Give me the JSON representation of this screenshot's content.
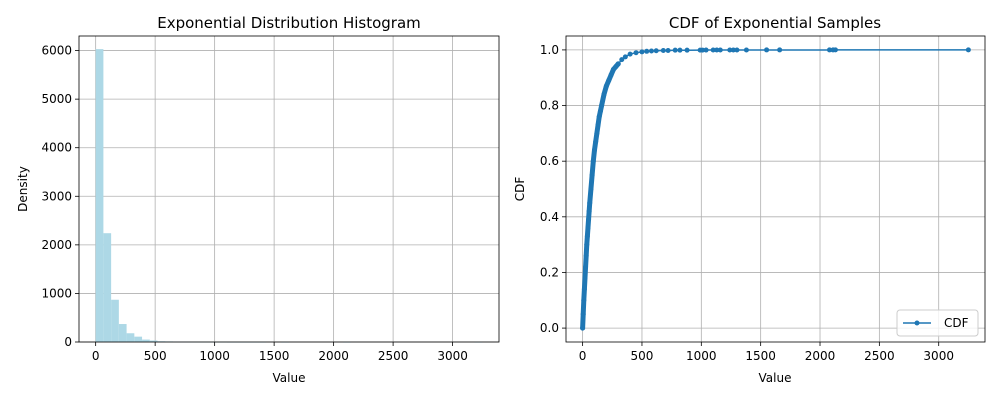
{
  "chart_data": [
    {
      "type": "bar",
      "title": "Exponential Distribution Histogram",
      "xlabel": "Value",
      "ylabel": "Density",
      "xlim": [
        -140,
        3390
      ],
      "ylim": [
        0,
        6300
      ],
      "xticks": [
        0,
        500,
        1000,
        1500,
        2000,
        2500,
        3000
      ],
      "yticks": [
        0,
        1000,
        2000,
        3000,
        4000,
        5000,
        6000
      ],
      "grid": true,
      "bar_color": "#add8e6",
      "bin_width": 65,
      "bins_start": [
        0,
        65,
        130,
        195,
        260,
        325,
        390,
        455,
        520,
        585,
        650,
        715,
        780,
        845,
        910,
        975,
        1040,
        1105,
        1170,
        1235,
        1300,
        1365,
        1430,
        1495,
        1560,
        1625,
        1690,
        1755,
        1820,
        1885,
        1950,
        2015,
        2080,
        2145,
        2210,
        2275,
        2340,
        2405,
        2470,
        2535,
        2600,
        2665,
        2730,
        2795,
        2860,
        2925,
        2990,
        3055,
        3120,
        3185
      ],
      "values": [
        6030,
        2240,
        870,
        370,
        180,
        110,
        50,
        30,
        15,
        12,
        8,
        6,
        4,
        3,
        2,
        2,
        2,
        1,
        1,
        1,
        1,
        1,
        0,
        0,
        1,
        0,
        0,
        0,
        0,
        0,
        0,
        0,
        1,
        0,
        0,
        0,
        0,
        0,
        0,
        0,
        0,
        0,
        0,
        0,
        0,
        0,
        0,
        0,
        0,
        1
      ]
    },
    {
      "type": "line",
      "title": "CDF of Exponential Samples",
      "xlabel": "Value",
      "ylabel": "CDF",
      "xlim": [
        -140,
        3390
      ],
      "ylim": [
        -0.05,
        1.05
      ],
      "xticks": [
        0,
        500,
        1000,
        1500,
        2000,
        2500,
        3000
      ],
      "yticks": [
        0.0,
        0.2,
        0.4,
        0.6,
        0.8,
        1.0
      ],
      "grid": true,
      "legend_position": "lower-right",
      "series": [
        {
          "name": "CDF",
          "color": "#1f77b4",
          "marker": "circle",
          "x": [
            0,
            5,
            10,
            15,
            20,
            25,
            30,
            35,
            40,
            45,
            50,
            55,
            60,
            70,
            80,
            90,
            100,
            110,
            120,
            130,
            140,
            150,
            160,
            180,
            200,
            220,
            240,
            260,
            280,
            300,
            330,
            360,
            400,
            450,
            500,
            540,
            580,
            620,
            680,
            720,
            780,
            820,
            880,
            990,
            1010,
            1040,
            1100,
            1130,
            1160,
            1240,
            1270,
            1300,
            1380,
            1550,
            1660,
            2080,
            2110,
            2130,
            3250
          ],
          "y": [
            0.0,
            0.05,
            0.1,
            0.14,
            0.18,
            0.22,
            0.26,
            0.3,
            0.33,
            0.36,
            0.39,
            0.42,
            0.45,
            0.5,
            0.55,
            0.6,
            0.64,
            0.67,
            0.7,
            0.73,
            0.76,
            0.78,
            0.8,
            0.84,
            0.87,
            0.89,
            0.91,
            0.93,
            0.94,
            0.95,
            0.965,
            0.975,
            0.985,
            0.99,
            0.993,
            0.995,
            0.996,
            0.997,
            0.998,
            0.998,
            0.999,
            0.999,
            0.999,
            0.9993,
            0.9994,
            0.9995,
            0.9996,
            0.9996,
            0.9997,
            0.9997,
            0.9998,
            0.9998,
            0.9998,
            0.9999,
            0.9999,
            0.9999,
            0.9999,
            1.0,
            1.0
          ]
        }
      ]
    }
  ]
}
